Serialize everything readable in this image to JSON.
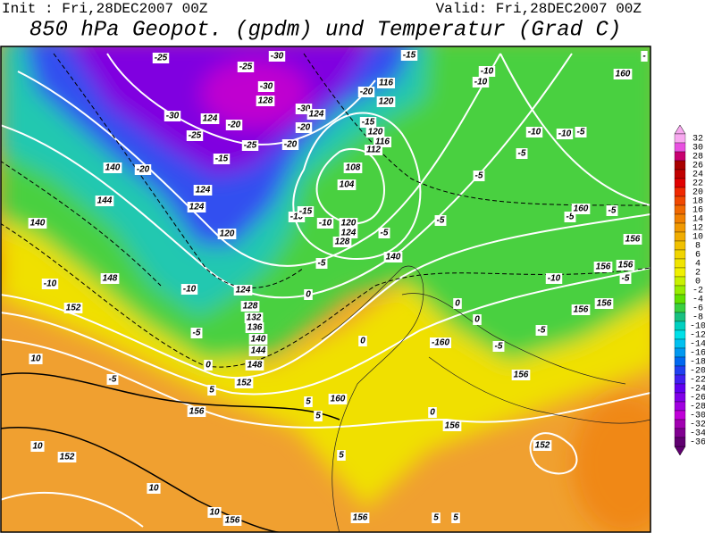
{
  "header": {
    "init": "Init : Fri,28DEC2007 00Z",
    "valid": "Valid: Fri,28DEC2007 00Z",
    "title": "850 hPa Geopot. (gpdm) und Temperatur (Grad C)"
  },
  "colorbar": {
    "labels": [
      32,
      30,
      28,
      26,
      24,
      22,
      20,
      18,
      16,
      14,
      12,
      10,
      8,
      6,
      4,
      2,
      0,
      -2,
      -4,
      -6,
      -8,
      -10,
      -12,
      -14,
      -16,
      -18,
      -20,
      -22,
      -24,
      -26,
      -28,
      -30,
      -32,
      -34,
      -36
    ],
    "colors": [
      "#f8a8f0",
      "#e850e0",
      "#c80070",
      "#a80000",
      "#c00000",
      "#e00000",
      "#f02800",
      "#f04800",
      "#f06800",
      "#f08000",
      "#f09800",
      "#f0ac00",
      "#f0c000",
      "#f0d400",
      "#f0e400",
      "#f0f000",
      "#c8f000",
      "#98ec00",
      "#60e000",
      "#38d040",
      "#18c080",
      "#00d0c0",
      "#00e0e8",
      "#00c0f0",
      "#0098f0",
      "#0068f0",
      "#2040f0",
      "#4020f0",
      "#6000f0",
      "#8000e8",
      "#a000e0",
      "#c000d8",
      "#a000b0",
      "#800090",
      "#600070"
    ]
  },
  "contour_labels": [
    "-25",
    "-30",
    "-25",
    "-15",
    "-10",
    "-10",
    "-30",
    "116",
    "-20",
    "128",
    "120",
    "-30",
    "124",
    "-30",
    "124",
    "-20",
    "-20",
    "-15",
    "120",
    "116",
    "-25",
    "-25",
    "-20",
    "112",
    "-10",
    "-10",
    "-5",
    "-5",
    "-15",
    "-20",
    "140",
    "108",
    "104",
    "-5",
    "124",
    "124",
    "144",
    "-10",
    "-15",
    "-10",
    "120",
    "124",
    "128",
    "140",
    "120",
    "-5",
    "-5",
    "-5",
    "-5",
    "160",
    "160",
    "156",
    "-5",
    "140",
    "148",
    "-10",
    "-10",
    "124",
    "0",
    "156",
    "156",
    "-10",
    "-5",
    "128",
    "152",
    "132",
    "136",
    "0",
    "0",
    "156",
    "156",
    "-5",
    "140",
    "0",
    "-160",
    "-5",
    "-5",
    "144",
    "10",
    "0",
    "148",
    "-5",
    "152",
    "156",
    "5",
    "0",
    "160",
    "5",
    "156",
    "5",
    "156",
    "5",
    "10",
    "152",
    "152",
    "10",
    "10",
    "156",
    "156",
    "5",
    "5",
    "-"
  ]
}
